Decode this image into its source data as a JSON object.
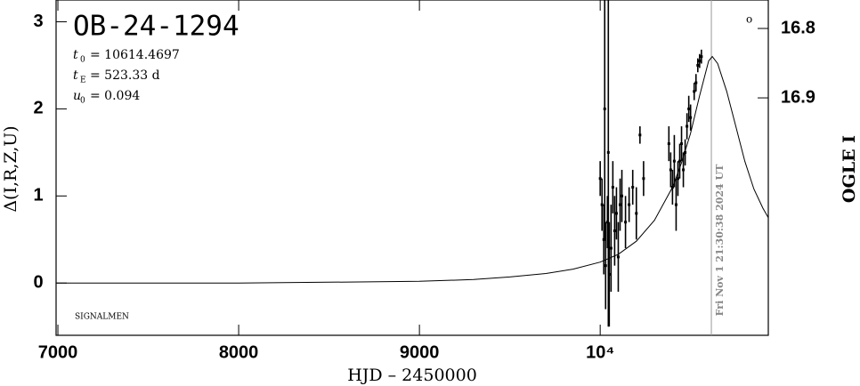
{
  "chart_data": {
    "type": "scatter",
    "title": "OB-24-1294",
    "parameters": [
      {
        "symbol": "t",
        "subscript": "0",
        "text": "= 10614.4697"
      },
      {
        "symbol": "t",
        "subscript": "E",
        "text": "= 523.33 d"
      },
      {
        "symbol": "u",
        "subscript": "0",
        "text": "= 0.094"
      }
    ],
    "note": "SIGNALMEN",
    "xlabel": "HJD – 2450000",
    "ylabel": "Δ(I,R,Z,U)",
    "y2label": "OGLE I",
    "xlim": [
      6990,
      10930
    ],
    "ylim": [
      -0.6,
      3.25
    ],
    "y2lim": [
      17.242,
      16.759
    ],
    "xticks": [
      7000,
      8000,
      9000,
      {
        "value": 10000,
        "label": "10⁴"
      }
    ],
    "yticks": [
      0,
      1,
      2,
      3
    ],
    "y2ticks": [
      16.8,
      16.9
    ],
    "timestamp": {
      "text": "Fri Nov  1 21:30:38 2024 UT",
      "x": 10615
    },
    "model": {
      "color": "#000000",
      "x": [
        6990,
        7500,
        8000,
        8500,
        9000,
        9300,
        9500,
        9700,
        9850,
        10000,
        10100,
        10200,
        10300,
        10400,
        10450,
        10500,
        10550,
        10600,
        10620,
        10650,
        10700,
        10750,
        10800,
        10850,
        10900,
        10930
      ],
      "values": [
        0.0,
        0.0,
        0.0,
        0.01,
        0.02,
        0.04,
        0.07,
        0.11,
        0.16,
        0.24,
        0.33,
        0.48,
        0.72,
        1.1,
        1.38,
        1.72,
        2.15,
        2.55,
        2.6,
        2.52,
        2.2,
        1.8,
        1.4,
        1.08,
        0.86,
        0.75
      ]
    },
    "series": [
      {
        "color": "#000000",
        "x": [
          10000,
          10010,
          10020,
          10025,
          10030,
          10040,
          10045,
          10050,
          10060,
          10070,
          10080,
          10090,
          10100,
          10110,
          10120,
          10140,
          10160,
          10180,
          10200,
          10220,
          10240,
          10380,
          10390,
          10400,
          10410,
          10420,
          10430,
          10440,
          10450,
          10460,
          10470,
          10480,
          10490,
          10500,
          10520,
          10530,
          10540,
          10550,
          10560
        ],
        "values": [
          1.2,
          0.9,
          0.5,
          2.0,
          0.2,
          0.7,
          1.5,
          0.1,
          0.4,
          1.1,
          0.6,
          0.8,
          0.3,
          0.9,
          1.0,
          0.7,
          0.9,
          1.1,
          0.8,
          1.7,
          1.2,
          1.6,
          1.3,
          1.1,
          1.4,
          0.9,
          1.2,
          1.4,
          1.6,
          1.3,
          1.5,
          1.8,
          2.0,
          1.9,
          2.2,
          2.3,
          2.5,
          2.55,
          2.6
        ],
        "errors": [
          0.2,
          0.3,
          0.4,
          1.5,
          0.5,
          0.3,
          2.0,
          0.6,
          0.5,
          0.3,
          0.4,
          0.3,
          0.4,
          0.3,
          0.3,
          0.3,
          0.2,
          0.2,
          0.3,
          0.1,
          0.2,
          0.2,
          0.2,
          0.2,
          0.3,
          0.3,
          0.2,
          0.2,
          0.2,
          0.2,
          0.15,
          0.15,
          0.15,
          0.15,
          0.1,
          0.1,
          0.08,
          0.08,
          0.08
        ]
      }
    ]
  }
}
